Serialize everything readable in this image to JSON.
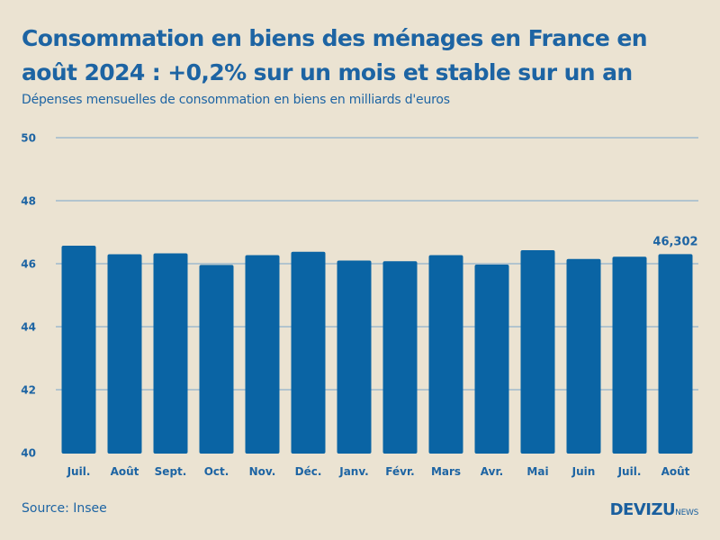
{
  "title_line1": "Consommation en biens des ménages en France en",
  "title_line2": "août 2024 : +0,2% sur un mois et stable sur un an",
  "subtitle": "Dépenses mensuelles de consommation en biens en milliards d'euros",
  "source": "Source: Insee",
  "brand": {
    "main": "DEVIZU",
    "sub": "NEWS"
  },
  "colors": {
    "background": "#ebe3d2",
    "bar": "#0a64a4",
    "text": "#1d64a3",
    "grid": "#7aa6c9"
  },
  "chart_data": {
    "type": "bar",
    "title": "Consommation en biens des ménages en France en août 2024 : +0,2% sur un mois et stable sur un an",
    "ylabel": "Dépenses mensuelles de consommation en biens en milliards d'euros",
    "xlabel": "",
    "ylim": [
      40,
      50
    ],
    "yticks": [
      40,
      42,
      44,
      46,
      48,
      50
    ],
    "grid": true,
    "categories": [
      "Juil.",
      "Août",
      "Sept.",
      "Oct.",
      "Nov.",
      "Déc.",
      "Janv.",
      "Févr.",
      "Mars",
      "Avr.",
      "Mai",
      "Juin",
      "Juil.",
      "Août"
    ],
    "values": [
      46.57,
      46.3,
      46.33,
      45.96,
      46.27,
      46.38,
      46.1,
      46.08,
      46.27,
      45.97,
      46.43,
      46.15,
      46.22,
      46.302
    ],
    "annotations": [
      {
        "category_index": 13,
        "label": "46,302"
      }
    ]
  }
}
